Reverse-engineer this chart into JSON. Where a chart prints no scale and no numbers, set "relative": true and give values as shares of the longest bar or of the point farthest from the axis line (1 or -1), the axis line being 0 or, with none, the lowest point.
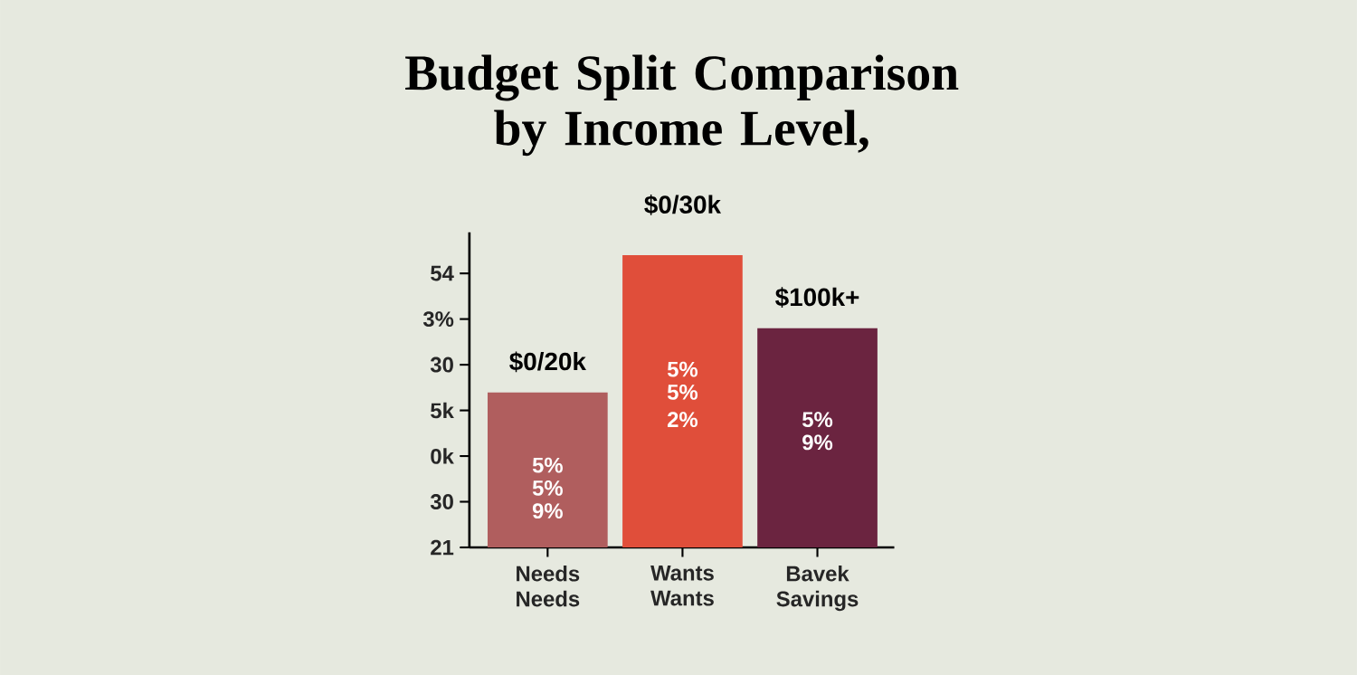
{
  "chart_data": {
    "type": "bar",
    "title": "Budget Split Comparison by Income Level,",
    "categories": [
      "Needs Needs",
      "Wants Wants",
      "Bavek Savings"
    ],
    "values": [
      0.53,
      1,
      0.75
    ],
    "relative": true,
    "colors": [
      "#b05e5e",
      "#e04e3a",
      "#6b2440"
    ],
    "annotations": [
      "$0/20k",
      "$0/30k",
      "$100k+",
      "5%",
      "5%",
      "9%",
      "5%",
      "5%",
      "2%",
      "5%",
      "9%",
      "54",
      "3%",
      "30",
      "5k",
      "0k",
      "30",
      "21"
    ]
  }
}
